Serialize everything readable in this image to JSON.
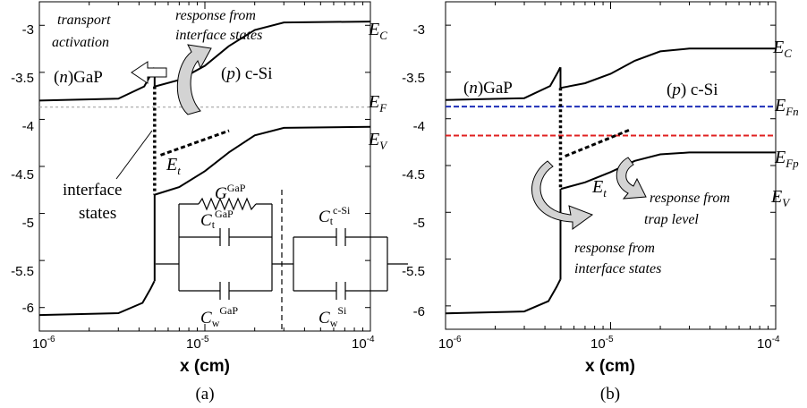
{
  "panel_a": {
    "caption": "(a)",
    "xlabel": "x (cm)",
    "x_ticks": [
      {
        "base": "10",
        "exp": "-6"
      },
      {
        "base": "10",
        "exp": "-5"
      },
      {
        "base": "10",
        "exp": "-4"
      }
    ],
    "y_ticks": [
      "-3",
      "-3.5",
      "-4",
      "-4.5",
      "-5",
      "-5.5",
      "-6"
    ],
    "band_labels": {
      "ec": {
        "main": "E",
        "sub": "C"
      },
      "ef": {
        "main": "E",
        "sub": "F"
      },
      "ev": {
        "main": "E",
        "sub": "V"
      },
      "et": {
        "main": "E",
        "sub": "t"
      }
    },
    "region_labels": {
      "gap": {
        "prefix": "(",
        "letter": "n",
        "suffix": ")GaP"
      },
      "si": {
        "prefix": "(",
        "letter": "p",
        "suffix": ") c-Si"
      }
    },
    "annotations": {
      "transport_1": "transport",
      "transport_2": "activation",
      "response_1": "response from",
      "response_2": "interface states",
      "interface_1": "interface",
      "interface_2": "states"
    },
    "circuit": {
      "g_gap": {
        "main": "G",
        "sup": "GaP"
      },
      "ct_gap": {
        "main": "C",
        "sub": "t",
        "sup": "GaP"
      },
      "cw_gap": {
        "main": "C",
        "sub": "w",
        "sup": "GaP"
      },
      "ct_si": {
        "main": "C",
        "sub": "t",
        "sup": "c-Si"
      },
      "cw_si": {
        "main": "C",
        "sub": "w",
        "sup": "Si"
      }
    }
  },
  "panel_b": {
    "caption": "(b)",
    "xlabel": "x (cm)",
    "x_ticks": [
      {
        "base": "10",
        "exp": "-6"
      },
      {
        "base": "10",
        "exp": "-5"
      },
      {
        "base": "10",
        "exp": "-4"
      }
    ],
    "y_ticks": [
      "-3",
      "-3.5",
      "-4",
      "-4.5",
      "-5",
      "-5.5",
      "-6"
    ],
    "band_labels": {
      "ec": {
        "main": "E",
        "sub": "C"
      },
      "efn": {
        "main": "E",
        "sub": "Fn"
      },
      "efp": {
        "main": "E",
        "sub": "Fp"
      },
      "ev": {
        "main": "E",
        "sub": "V"
      },
      "et": {
        "main": "E",
        "sub": "t"
      }
    },
    "region_labels": {
      "gap": {
        "prefix": "(",
        "letter": "n",
        "suffix": ")GaP"
      },
      "si": {
        "prefix": "(",
        "letter": "p",
        "suffix": ") c-Si"
      }
    },
    "annotations": {
      "trap_1": "response from",
      "trap_2": "trap level",
      "iface_1": "response from",
      "iface_2": "interface states"
    },
    "colors": {
      "efn": "#1f2fb8",
      "efp": "#e02020"
    }
  },
  "chart_data": [
    {
      "type": "line",
      "title": "",
      "xlabel": "x (cm)",
      "ylabel": "",
      "xscale": "log",
      "xlim": [
        1e-06,
        0.0001
      ],
      "ylim": [
        -6.25,
        -2.75
      ],
      "series": [
        {
          "x": [
            1e-06,
            3e-06,
            4.3e-06,
            4.8e-06,
            4.95e-06
          ],
          "y": [
            -3.8,
            -3.78,
            -3.65,
            -3.5,
            -3.45
          ]
        },
        {
          "x": [
            5e-06,
            7e-06,
            1e-05,
            1.4e-05,
            2e-05,
            3e-05,
            0.0001
          ],
          "y": [
            -3.65,
            -3.58,
            -3.43,
            -3.22,
            -3.05,
            -2.97,
            -2.96
          ]
        },
        {
          "x": [
            1e-06,
            0.0001
          ],
          "y": [
            -3.87,
            -3.87
          ]
        },
        {
          "x": [
            5e-06,
            7e-06,
            1e-05,
            1.4e-05,
            2e-05,
            3e-05,
            0.0001
          ],
          "y": [
            -4.8,
            -4.72,
            -4.55,
            -4.35,
            -4.17,
            -4.09,
            -4.08
          ]
        },
        {
          "x": [
            1e-06,
            3e-06,
            4.2e-06,
            4.7e-06,
            4.95e-06
          ],
          "y": [
            -6.08,
            -6.06,
            -5.95,
            -5.8,
            -5.72
          ]
        }
      ]
    },
    {
      "type": "line",
      "title": "",
      "xlabel": "x (cm)",
      "ylabel": "",
      "xscale": "log",
      "xlim": [
        1e-06,
        0.0001
      ],
      "ylim": [
        -6.25,
        -2.75
      ],
      "series": [
        {
          "x": [
            1e-06,
            3e-06,
            4.3e-06,
            4.8e-06,
            4.95e-06
          ],
          "y": [
            -3.8,
            -3.78,
            -3.65,
            -3.5,
            -3.45
          ]
        },
        {
          "x": [
            5e-06,
            7e-06,
            1e-05,
            1.4e-05,
            2e-05,
            3e-05,
            0.0001
          ],
          "y": [
            -3.67,
            -3.62,
            -3.52,
            -3.38,
            -3.28,
            -3.25,
            -3.25
          ]
        },
        {
          "x": [
            1e-06,
            0.0001
          ],
          "y": [
            -3.87,
            -3.87
          ]
        },
        {
          "x": [
            1e-06,
            0.0001
          ],
          "y": [
            -4.18,
            -4.18
          ]
        },
        {
          "x": [
            5e-06,
            7e-06,
            1e-05,
            1.4e-05,
            2e-05,
            3e-05,
            0.0001
          ],
          "y": [
            -4.75,
            -4.68,
            -4.57,
            -4.45,
            -4.38,
            -4.36,
            -4.36
          ]
        },
        {
          "x": [
            1e-06,
            3e-06,
            4.2e-06,
            4.7e-06,
            4.95e-06
          ],
          "y": [
            -6.08,
            -6.06,
            -5.95,
            -5.8,
            -5.72
          ]
        }
      ]
    }
  ]
}
